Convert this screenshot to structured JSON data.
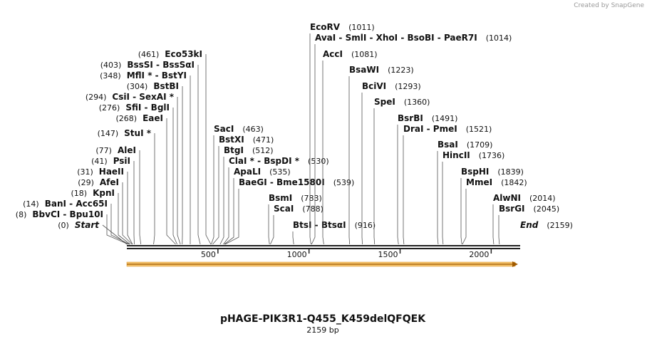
{
  "watermark": "Created by SnapGene",
  "title": "pHAGE-PIK3R1-Q455_K459delQFQEK",
  "subtitle": "2159 bp",
  "ruler": [
    "500",
    "1000",
    "1500",
    "2000"
  ],
  "sites": [
    {
      "name": "Start",
      "position": "(0)"
    },
    {
      "name": "BbvCI  -  Bpu10I",
      "position": "(8)"
    },
    {
      "name": "BanI  -  Acc65I",
      "position": "(14)"
    },
    {
      "name": "KpnI",
      "position": "(18)"
    },
    {
      "name": "AfeI",
      "position": "(29)"
    },
    {
      "name": "HaeII",
      "position": "(31)"
    },
    {
      "name": "PsiI",
      "position": "(41)"
    },
    {
      "name": "AleI",
      "position": "(77)"
    },
    {
      "name": "StuI *",
      "position": "(147)"
    },
    {
      "name": "EaeI",
      "position": "(268)"
    },
    {
      "name": "SfiI  -  BglI",
      "position": "(276)"
    },
    {
      "name": "CsiI  -  SexAI *",
      "position": "(294)"
    },
    {
      "name": "BstBI",
      "position": "(304)"
    },
    {
      "name": "MflI *  -  BstYI",
      "position": "(348)"
    },
    {
      "name": "BssSI  -  BssSαI",
      "position": "(403)"
    },
    {
      "name": "Eco53kI",
      "position": "(461)"
    },
    {
      "name": "SacI",
      "position": "(463)"
    },
    {
      "name": "BstXI",
      "position": "(471)"
    },
    {
      "name": "BtgI",
      "position": "(512)"
    },
    {
      "name": "ClaI *  -  BspDI *",
      "position": "(530)"
    },
    {
      "name": "ApaLI",
      "position": "(535)"
    },
    {
      "name": "BaeGI  -  Bme1580I",
      "position": "(539)"
    },
    {
      "name": "BsmI",
      "position": "(783)"
    },
    {
      "name": "ScaI",
      "position": "(788)"
    },
    {
      "name": "BtsI  -  BtsαI",
      "position": "(916)"
    },
    {
      "name": "EcoRV",
      "position": "(1011)"
    },
    {
      "name": "AvaI  -  SmlI  -  XhoI  -  BsoBI  -  PaeR7I",
      "position": "(1014)"
    },
    {
      "name": "AccI",
      "position": "(1081)"
    },
    {
      "name": "BsaWI",
      "position": "(1223)"
    },
    {
      "name": "BciVI",
      "position": "(1293)"
    },
    {
      "name": "SpeI",
      "position": "(1360)"
    },
    {
      "name": "BsrBI",
      "position": "(1491)"
    },
    {
      "name": "DraI  -  PmeI",
      "position": "(1521)"
    },
    {
      "name": "BsaI",
      "position": "(1709)"
    },
    {
      "name": "HincII",
      "position": "(1736)"
    },
    {
      "name": "BspHI",
      "position": "(1839)"
    },
    {
      "name": "MmeI",
      "position": "(1842)"
    },
    {
      "name": "AlwNI",
      "position": "(2014)"
    },
    {
      "name": "BsrGI",
      "position": "(2045)"
    },
    {
      "name": "End",
      "position": "(2159)"
    }
  ]
}
